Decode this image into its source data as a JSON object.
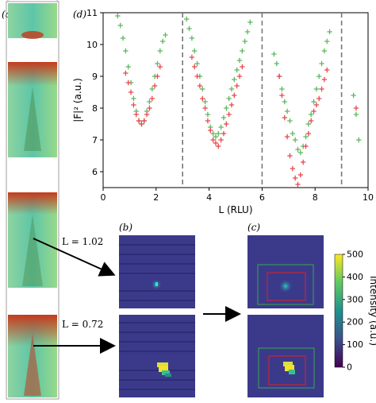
{
  "panels": {
    "a": {
      "label": "(a)"
    },
    "b": {
      "label": "(b)"
    },
    "c": {
      "label": "(c)"
    },
    "d": {
      "label": "(d)"
    }
  },
  "annotations": [
    {
      "text": "L = 1.02"
    },
    {
      "text": "L = 0.72"
    }
  ],
  "colorbar": {
    "label": "Intensity (a.u.)",
    "ticks": [
      0,
      100,
      200,
      300,
      400,
      500
    ],
    "range": [
      0,
      500
    ]
  },
  "colors": {
    "series_green": "#5cb85c",
    "series_red": "#e8474b",
    "detector_bg": "#3b3a8a",
    "roi_inner": "#e02020",
    "roi_outer": "#3aa84a"
  },
  "chart_data": {
    "type": "scatter",
    "xlabel": "L (RLU)",
    "ylabel": "|F|² (a.u.)",
    "xlim": [
      0,
      10
    ],
    "ylim": [
      5.5,
      11
    ],
    "xticks": [
      0,
      2,
      4,
      6,
      8,
      10
    ],
    "yticks": [
      6,
      7,
      8,
      9,
      10,
      11
    ],
    "vlines": [
      3,
      6,
      9
    ],
    "grid": false,
    "series": [
      {
        "marker": "+",
        "color": "#5cb85c",
        "x": [
          0.55,
          0.65,
          0.75,
          0.85,
          0.95,
          1.05,
          1.15,
          1.25,
          1.35,
          1.45,
          1.55,
          1.65,
          1.75,
          1.85,
          1.95,
          2.05,
          2.15,
          2.25,
          2.35,
          3.15,
          3.25,
          3.35,
          3.45,
          3.55,
          3.65,
          3.75,
          3.85,
          3.95,
          4.05,
          4.15,
          4.25,
          4.35,
          4.45,
          4.55,
          4.65,
          4.75,
          4.85,
          4.95,
          5.05,
          5.15,
          5.25,
          5.35,
          5.45,
          5.55,
          6.45,
          6.55,
          6.65,
          6.75,
          6.85,
          6.95,
          7.05,
          7.15,
          7.25,
          7.35,
          7.45,
          7.55,
          7.65,
          7.75,
          7.85,
          7.95,
          8.05,
          8.15,
          8.25,
          8.35,
          8.45,
          8.55,
          9.45,
          9.55,
          9.65
        ],
        "y": [
          10.9,
          10.6,
          10.2,
          9.8,
          9.3,
          8.8,
          8.3,
          7.9,
          7.6,
          7.5,
          7.6,
          7.9,
          8.2,
          8.6,
          9.0,
          9.4,
          9.8,
          10.1,
          10.3,
          10.8,
          10.5,
          10.2,
          9.8,
          9.4,
          9.0,
          8.6,
          8.2,
          7.8,
          7.4,
          7.2,
          7.1,
          7.2,
          7.4,
          7.7,
          8.0,
          8.3,
          8.6,
          8.9,
          9.2,
          9.5,
          9.8,
          10.1,
          10.4,
          10.7,
          9.7,
          9.4,
          9.0,
          8.6,
          8.2,
          7.9,
          7.6,
          7.2,
          7.0,
          6.7,
          6.6,
          6.8,
          7.1,
          7.5,
          7.8,
          8.2,
          8.6,
          9.0,
          9.4,
          9.8,
          10.1,
          10.4,
          8.4,
          7.8,
          7.0
        ]
      },
      {
        "marker": "+",
        "color": "#e8474b",
        "x": [
          0.85,
          0.95,
          1.05,
          1.15,
          1.25,
          1.35,
          1.45,
          1.55,
          1.65,
          1.75,
          1.85,
          1.95,
          2.05,
          2.15,
          3.35,
          3.45,
          3.55,
          3.65,
          3.75,
          3.85,
          3.95,
          4.05,
          4.15,
          4.25,
          4.35,
          4.45,
          4.55,
          4.65,
          4.75,
          4.85,
          4.95,
          5.05,
          5.15,
          5.25,
          6.65,
          6.75,
          6.85,
          6.95,
          7.05,
          7.15,
          7.25,
          7.35,
          7.45,
          7.55,
          7.65,
          7.75,
          7.85,
          7.95,
          8.05,
          8.15,
          8.25,
          8.35,
          8.45,
          9.55
        ],
        "y": [
          9.1,
          8.8,
          8.5,
          8.1,
          7.8,
          7.6,
          7.5,
          7.6,
          7.8,
          8.0,
          8.3,
          8.7,
          9.0,
          9.3,
          9.6,
          9.3,
          9.0,
          8.7,
          8.3,
          8.0,
          7.6,
          7.3,
          7.0,
          6.9,
          6.8,
          7.0,
          7.2,
          7.5,
          7.8,
          8.1,
          8.4,
          8.7,
          9.0,
          9.3,
          9.0,
          8.4,
          7.7,
          7.1,
          6.5,
          6.1,
          5.8,
          5.6,
          5.9,
          6.3,
          6.8,
          7.2,
          7.6,
          7.9,
          8.1,
          8.3,
          8.6,
          8.9,
          9.2,
          8.0
        ]
      }
    ]
  }
}
